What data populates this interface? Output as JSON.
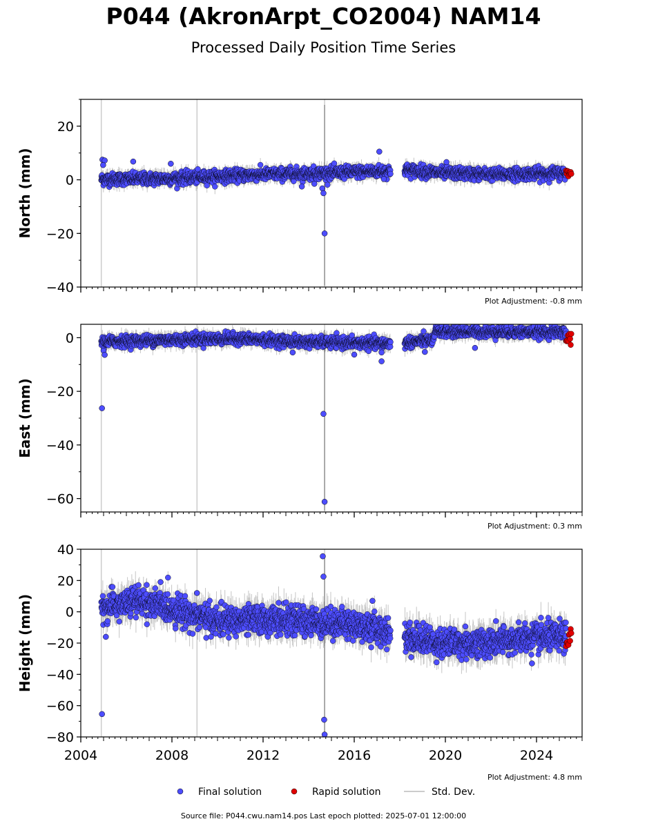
{
  "title": "P044 (AkronArpt_CO2004) NAM14",
  "subtitle": "Processed Daily Position Time Series",
  "source_line": "Source file: P044.cwu.nam14.pos  Last epoch plotted: 2025-07-01 12:00:00",
  "colors": {
    "final": "#4d4dff",
    "rapid": "#e00000",
    "stddev": "#bbbbbb",
    "stddev_dark": "#555555",
    "marker_edge": "#000000"
  },
  "legend": {
    "final_label": "Final solution",
    "rapid_label": "Rapid solution",
    "stddev_label": "Std. Dev."
  },
  "chart_data": [
    {
      "type": "scatter",
      "component": "north",
      "ylabel": "North (mm)",
      "ylim": [
        -40,
        30
      ],
      "yticks": [
        -40,
        -20,
        0,
        20
      ],
      "xlim": [
        2004.0,
        2026.0
      ],
      "xticks": [
        2004,
        2008,
        2012,
        2016,
        2020,
        2024
      ],
      "show_xtick_labels": false,
      "adjustment_text": "Plot Adjustment: -0.8 mm",
      "series": [
        {
          "name": "Final solution",
          "trend_x": [
            2004.9,
            2008.0,
            2012.0,
            2014.6,
            2017.5,
            2018.3,
            2020.0,
            2022.0,
            2025.3
          ],
          "trend_y": [
            0.2,
            0.5,
            2.0,
            2.5,
            3.3,
            3.7,
            2.5,
            2.0,
            2.5
          ],
          "noise_sd": 1.1,
          "stddev_mm": 2.0
        },
        {
          "name": "Rapid solution",
          "x_range": [
            2025.3,
            2025.55
          ],
          "y_mean": 2.4,
          "noise_sd": 0.6
        }
      ],
      "outliers": [
        {
          "x": 2004.95,
          "y": 7.5
        },
        {
          "x": 2005.05,
          "y": 7.2
        },
        {
          "x": 2004.98,
          "y": 5.5
        },
        {
          "x": 2006.3,
          "y": 6.8
        },
        {
          "x": 2007.95,
          "y": 6.0
        },
        {
          "x": 2013.7,
          "y": -2.5
        },
        {
          "x": 2014.25,
          "y": -1.5
        },
        {
          "x": 2014.6,
          "y": -3.2
        },
        {
          "x": 2014.65,
          "y": -5.0
        },
        {
          "x": 2014.7,
          "y": -20.0
        },
        {
          "x": 2017.1,
          "y": 10.5
        },
        {
          "x": 2017.3,
          "y": 0.3
        },
        {
          "x": 2020.05,
          "y": 6.6
        }
      ],
      "gap": [
        2017.6,
        2018.2
      ],
      "vlines": [
        2004.9,
        2009.1,
        2014.7
      ]
    },
    {
      "type": "scatter",
      "component": "east",
      "ylabel": "East (mm)",
      "ylim": [
        -65,
        5
      ],
      "yticks": [
        -60,
        -40,
        -20,
        0
      ],
      "xlim": [
        2004.0,
        2026.0
      ],
      "xticks": [
        2004,
        2008,
        2012,
        2016,
        2020,
        2024
      ],
      "show_xtick_labels": false,
      "adjustment_text": "Plot Adjustment: 0.3 mm",
      "series": [
        {
          "name": "Final solution",
          "trend_x": [
            2004.9,
            2009.0,
            2011.0,
            2013.5,
            2017.5,
            2018.3,
            2019.5,
            2019.55,
            2025.3
          ],
          "trend_y": [
            -1.5,
            -0.5,
            -0.3,
            -1.5,
            -2.2,
            -1.8,
            -0.8,
            2.3,
            2.0
          ],
          "noise_sd": 1.0,
          "stddev_mm": 2.0
        },
        {
          "name": "Rapid solution",
          "x_range": [
            2025.3,
            2025.55
          ],
          "y_mean": 0.5,
          "noise_sd": 1.3
        }
      ],
      "outliers": [
        {
          "x": 2004.93,
          "y": -26.3
        },
        {
          "x": 2005.0,
          "y": -4.8
        },
        {
          "x": 2005.05,
          "y": -6.4
        },
        {
          "x": 2013.3,
          "y": -5.5
        },
        {
          "x": 2014.65,
          "y": -28.4
        },
        {
          "x": 2014.7,
          "y": -61.2
        },
        {
          "x": 2016.0,
          "y": -6.3
        },
        {
          "x": 2017.2,
          "y": -8.8
        },
        {
          "x": 2017.2,
          "y": -5.5
        },
        {
          "x": 2019.1,
          "y": -5.3
        },
        {
          "x": 2021.3,
          "y": -3.8
        }
      ],
      "gap": [
        2017.6,
        2018.2
      ],
      "vlines": [
        2004.9,
        2009.1,
        2014.7
      ]
    },
    {
      "type": "scatter",
      "component": "height",
      "ylabel": "Height (mm)",
      "ylim": [
        -80,
        40
      ],
      "yticks": [
        -80,
        -60,
        -40,
        -20,
        0,
        20,
        40
      ],
      "xlim": [
        2004.0,
        2026.0
      ],
      "xticks": [
        2004,
        2008,
        2012,
        2016,
        2020,
        2024
      ],
      "xticklabels": [
        "2004",
        "2008",
        "2012",
        "2016",
        "2020",
        "2024"
      ],
      "show_xtick_labels": true,
      "adjustment_text": "Plot Adjustment: 4.8 mm",
      "series": [
        {
          "name": "Final solution",
          "trend_x": [
            2004.9,
            2005.5,
            2006.5,
            2008.0,
            2010.0,
            2012.0,
            2014.0,
            2016.0,
            2017.5,
            2018.3,
            2020.0,
            2022.0,
            2023.5,
            2025.3
          ],
          "trend_y": [
            2.0,
            4.0,
            7.0,
            2.0,
            -6.0,
            -5.0,
            -6.0,
            -8.0,
            -13.0,
            -16.0,
            -20.0,
            -20.0,
            -17.0,
            -16.0
          ],
          "noise_sd": 4.5,
          "stddev_mm": 7.0
        },
        {
          "name": "Rapid solution",
          "x_range": [
            2025.3,
            2025.55
          ],
          "y_mean": -17.0,
          "noise_sd": 3.5
        }
      ],
      "outliers": [
        {
          "x": 2004.93,
          "y": -65.4
        },
        {
          "x": 2005.1,
          "y": -16.0
        },
        {
          "x": 2007.5,
          "y": 19.0
        },
        {
          "x": 2009.1,
          "y": 12.0
        },
        {
          "x": 2014.62,
          "y": 35.5
        },
        {
          "x": 2014.65,
          "y": 22.5
        },
        {
          "x": 2014.68,
          "y": -69.0
        },
        {
          "x": 2014.7,
          "y": -78.5
        },
        {
          "x": 2016.8,
          "y": 7.0
        },
        {
          "x": 2018.5,
          "y": -29.0
        },
        {
          "x": 2023.8,
          "y": -33.0
        }
      ],
      "gap": [
        2017.6,
        2018.2
      ],
      "vlines": [
        2004.9,
        2009.1,
        2014.7
      ]
    }
  ]
}
